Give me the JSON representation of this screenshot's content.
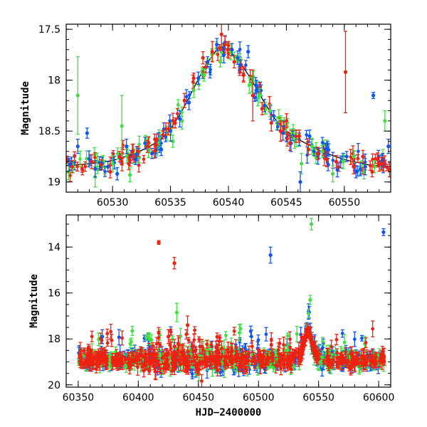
{
  "chart_data": [
    {
      "type": "scatter",
      "panel": "top",
      "title": "",
      "xlabel": "",
      "ylabel": "Magnitude",
      "xlim": [
        60526,
        60554
      ],
      "ylim": [
        19.1,
        17.45
      ],
      "y_inverted": true,
      "xticks": [
        60530,
        60535,
        60540,
        60545,
        60550
      ],
      "yticks": [
        17.5,
        18,
        18.5,
        19
      ],
      "xtick_labels": [
        "60530",
        "60535",
        "60540",
        "60545",
        "60550"
      ],
      "ytick_labels": [
        "17.5",
        "18",
        "18.5",
        "19"
      ],
      "colors": {
        "green": "#44dd44",
        "blue": "#1155ee",
        "red": "#ee2211",
        "model": "#000000"
      },
      "model_curve": {
        "x": [
          60526,
          60528,
          60530,
          60532,
          60534,
          60535,
          60536,
          60537,
          60538,
          60539,
          60539.5,
          60540,
          60541,
          60542,
          60543,
          60544,
          60545,
          60546,
          60547,
          60548,
          60550,
          60552,
          60554
        ],
        "y": [
          18.84,
          18.82,
          18.79,
          18.72,
          18.6,
          18.48,
          18.3,
          18.08,
          17.86,
          17.7,
          17.68,
          17.7,
          17.82,
          18.0,
          18.2,
          18.38,
          18.5,
          18.58,
          18.64,
          18.7,
          18.78,
          18.83,
          18.85
        ]
      },
      "series": [
        {
          "color": "green",
          "x": [
            60526.2,
            60526.6,
            60527,
            60528.5,
            60529.2,
            60530,
            60530.8,
            60531.5,
            60532.3,
            60533.1,
            60534,
            60535.2,
            60536,
            60537,
            60537.9,
            60538.6,
            60539.3,
            60540.2,
            60541,
            60541.8,
            60542.7,
            60543.6,
            60544.5,
            60545.4,
            60546.3,
            60547.2,
            60548.1,
            60549,
            60549.9,
            60550.8,
            60551.7,
            60552.6,
            60553.5
          ],
          "y": [
            18.9,
            18.85,
            18.15,
            18.95,
            18.8,
            18.82,
            18.45,
            18.93,
            18.76,
            18.7,
            18.62,
            18.6,
            18.4,
            18.1,
            17.95,
            17.75,
            17.82,
            17.72,
            17.8,
            18.05,
            18.15,
            18.3,
            18.4,
            18.55,
            18.82,
            18.65,
            18.7,
            18.92,
            18.8,
            18.75,
            18.9,
            18.85,
            18.4
          ],
          "err": [
            0.08,
            0.06,
            0.38,
            0.1,
            0.06,
            0.08,
            0.3,
            0.07,
            0.05,
            0.06,
            0.05,
            0.06,
            0.08,
            0.07,
            0.06,
            0.06,
            0.05,
            0.08,
            0.06,
            0.08,
            0.07,
            0.06,
            0.05,
            0.07,
            0.1,
            0.08,
            0.06,
            0.08,
            0.07,
            0.06,
            0.07,
            0.06,
            0.1
          ]
        },
        {
          "color": "blue",
          "x": [
            60526.3,
            60527,
            60527.8,
            60528.5,
            60529.1,
            60529.6,
            60530.4,
            60531.2,
            60532,
            60532.8,
            60533.4,
            60534.2,
            60535,
            60535.8,
            60536.6,
            60537.4,
            60538.2,
            60539,
            60539.6,
            60540.3,
            60541,
            60541.7,
            60542.4,
            60543.1,
            60543.9,
            60544.7,
            60545.4,
            60546.2,
            60547,
            60547.8,
            60548.6,
            60549.4,
            60550.2,
            60551,
            60551.8,
            60552.5,
            60553.3,
            60553.8
          ],
          "y": [
            18.83,
            18.65,
            18.52,
            18.87,
            18.82,
            18.85,
            18.92,
            18.65,
            18.78,
            18.62,
            18.72,
            18.68,
            18.5,
            18.38,
            18.22,
            17.98,
            17.82,
            17.65,
            17.75,
            17.7,
            17.85,
            17.72,
            18.1,
            18.25,
            18.35,
            18.52,
            18.62,
            19.0,
            18.55,
            18.72,
            18.83,
            18.88,
            18.75,
            18.9,
            18.85,
            18.15,
            18.78,
            18.65
          ],
          "err": [
            0.06,
            0.07,
            0.05,
            0.08,
            0.06,
            0.05,
            0.06,
            0.07,
            0.05,
            0.06,
            0.05,
            0.06,
            0.1,
            0.08,
            0.07,
            0.06,
            0.05,
            0.06,
            0.08,
            0.06,
            0.05,
            0.06,
            0.1,
            0.06,
            0.05,
            0.07,
            0.08,
            0.1,
            0.06,
            0.05,
            0.06,
            0.07,
            0.05,
            0.06,
            0.08,
            0.03,
            0.06,
            0.07
          ]
        },
        {
          "color": "red",
          "x": [
            60526.5,
            60527.4,
            60528.2,
            60529,
            60529.8,
            60530.6,
            60531.4,
            60532.2,
            60533,
            60533.8,
            60534.6,
            60535.4,
            60536.2,
            60537,
            60537.8,
            60538.6,
            60539.4,
            60539.7,
            60540.5,
            60541.3,
            60542.1,
            60542.9,
            60543.7,
            60544.5,
            60545.3,
            60546.1,
            60546.9,
            60547.7,
            60548.5,
            60549.3,
            60550.1,
            60550.8,
            60551.6,
            60552.4,
            60553.2,
            60553.9
          ],
          "y": [
            18.85,
            18.88,
            18.8,
            18.83,
            18.9,
            18.75,
            18.82,
            18.7,
            18.65,
            18.58,
            18.48,
            18.42,
            18.2,
            17.98,
            17.78,
            17.72,
            17.55,
            17.65,
            17.82,
            17.95,
            18.15,
            18.28,
            18.42,
            18.5,
            18.62,
            18.55,
            18.68,
            18.72,
            18.78,
            18.8,
            17.92,
            18.85,
            18.75,
            18.9,
            18.82,
            18.88
          ],
          "err": [
            0.06,
            0.05,
            0.07,
            0.05,
            0.06,
            0.05,
            0.06,
            0.05,
            0.06,
            0.05,
            0.06,
            0.05,
            0.07,
            0.05,
            0.06,
            0.1,
            0.15,
            0.08,
            0.06,
            0.07,
            0.25,
            0.06,
            0.08,
            0.1,
            0.07,
            0.06,
            0.05,
            0.06,
            0.07,
            0.06,
            0.4,
            0.07,
            0.06,
            0.05,
            0.06,
            0.07
          ]
        }
      ]
    },
    {
      "type": "scatter",
      "panel": "bottom",
      "title": "",
      "xlabel": "HJD−2400000",
      "ylabel": "Magnitude",
      "xlim": [
        60340,
        60610
      ],
      "ylim": [
        20.1,
        12.6
      ],
      "y_inverted": true,
      "xticks": [
        60350,
        60400,
        60450,
        60500,
        60550,
        60600
      ],
      "yticks": [
        14,
        16,
        18,
        20
      ],
      "xtick_labels": [
        "60350",
        "60400",
        "60450",
        "60500",
        "60550",
        "60600"
      ],
      "ytick_labels": [
        "14",
        "16",
        "18",
        "20"
      ],
      "outliers": [
        {
          "color": "red",
          "x": 60417,
          "y": 13.8,
          "err": 0.08
        },
        {
          "color": "red",
          "x": 60430,
          "y": 14.7,
          "err": 0.25
        },
        {
          "color": "green",
          "x": 60544,
          "y": 13.0,
          "err": 0.25
        },
        {
          "color": "green",
          "x": 60543,
          "y": 16.3,
          "err": 0.2
        },
        {
          "color": "blue",
          "x": 60510,
          "y": 14.35,
          "err": 0.35
        },
        {
          "color": "blue",
          "x": 60604,
          "y": 13.35,
          "err": 0.15
        },
        {
          "color": "green",
          "x": 60432,
          "y": 16.85,
          "err": 0.4
        },
        {
          "color": "red",
          "x": 60441,
          "y": 17.4,
          "err": 0.4
        },
        {
          "color": "green",
          "x": 60395,
          "y": 17.65,
          "err": 0.2
        },
        {
          "color": "blue",
          "x": 60370,
          "y": 17.9,
          "err": 0.3
        },
        {
          "color": "green",
          "x": 60485,
          "y": 17.55,
          "err": 0.2
        },
        {
          "color": "red",
          "x": 60425,
          "y": 17.9,
          "err": 0.3
        }
      ]
    }
  ]
}
